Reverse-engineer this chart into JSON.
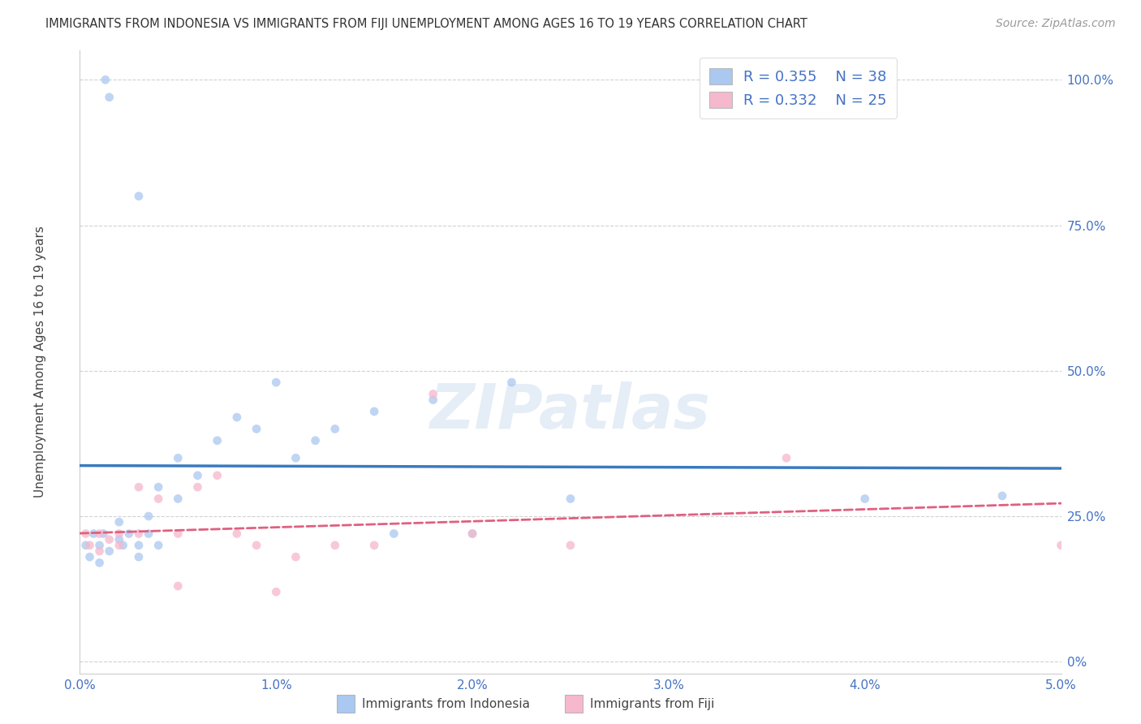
{
  "title": "IMMIGRANTS FROM INDONESIA VS IMMIGRANTS FROM FIJI UNEMPLOYMENT AMONG AGES 16 TO 19 YEARS CORRELATION CHART",
  "source": "Source: ZipAtlas.com",
  "ylabel": "Unemployment Among Ages 16 to 19 years",
  "xlim": [
    0.0,
    0.05
  ],
  "ylim": [
    -0.02,
    1.05
  ],
  "watermark_text": "ZIPatlas",
  "legend_indonesia": "Immigrants from Indonesia",
  "legend_fiji": "Immigrants from Fiji",
  "R_indonesia": "0.355",
  "N_indonesia": "38",
  "R_fiji": "0.332",
  "N_fiji": "25",
  "blue_scatter_color": "#aac8f0",
  "pink_scatter_color": "#f5b8cc",
  "blue_line_color": "#3a7abf",
  "pink_line_color": "#e06080",
  "title_color": "#333333",
  "axis_color": "#4472c4",
  "source_color": "#999999",
  "grid_color": "#cccccc",
  "ytick_vals": [
    0.0,
    0.25,
    0.5,
    0.75,
    1.0
  ],
  "ytick_labels": [
    "0%",
    "25.0%",
    "50.0%",
    "75.0%",
    "100.0%"
  ],
  "xtick_vals": [
    0.0,
    0.01,
    0.02,
    0.03,
    0.04,
    0.05
  ],
  "xtick_labels": [
    "0.0%",
    "1.0%",
    "2.0%",
    "3.0%",
    "4.0%",
    "5.0%"
  ],
  "indonesia_x": [
    0.0003,
    0.0005,
    0.0007,
    0.001,
    0.001,
    0.0012,
    0.0013,
    0.0015,
    0.0015,
    0.002,
    0.002,
    0.0022,
    0.0025,
    0.003,
    0.003,
    0.003,
    0.0035,
    0.0035,
    0.004,
    0.004,
    0.005,
    0.005,
    0.006,
    0.007,
    0.008,
    0.009,
    0.01,
    0.011,
    0.012,
    0.013,
    0.015,
    0.016,
    0.018,
    0.02,
    0.022,
    0.025,
    0.04,
    0.047
  ],
  "indonesia_y": [
    0.2,
    0.18,
    0.22,
    0.17,
    0.2,
    0.22,
    1.0,
    0.97,
    0.19,
    0.21,
    0.24,
    0.2,
    0.22,
    0.18,
    0.2,
    0.8,
    0.22,
    0.25,
    0.2,
    0.3,
    0.28,
    0.35,
    0.32,
    0.38,
    0.42,
    0.4,
    0.48,
    0.35,
    0.38,
    0.4,
    0.43,
    0.22,
    0.45,
    0.22,
    0.48,
    0.28,
    0.28,
    0.285
  ],
  "fiji_x": [
    0.0003,
    0.0005,
    0.001,
    0.001,
    0.0015,
    0.002,
    0.002,
    0.003,
    0.003,
    0.004,
    0.005,
    0.005,
    0.006,
    0.007,
    0.008,
    0.009,
    0.01,
    0.011,
    0.013,
    0.015,
    0.018,
    0.02,
    0.025,
    0.036,
    0.05
  ],
  "fiji_y": [
    0.22,
    0.2,
    0.19,
    0.22,
    0.21,
    0.2,
    0.22,
    0.22,
    0.3,
    0.28,
    0.13,
    0.22,
    0.3,
    0.32,
    0.22,
    0.2,
    0.12,
    0.18,
    0.2,
    0.2,
    0.46,
    0.22,
    0.2,
    0.35,
    0.2
  ]
}
